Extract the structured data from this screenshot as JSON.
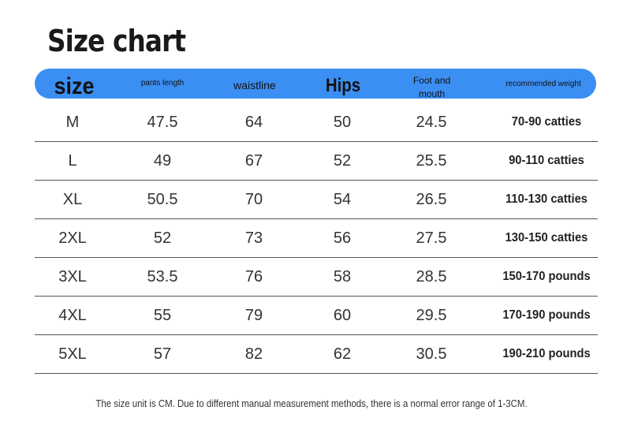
{
  "title": "Size chart",
  "header": {
    "size": "size",
    "pants_length": "pants length",
    "waistline": "waistline",
    "hips": "Hips",
    "foot_and_mouth": "Foot and mouth",
    "recommended_weight": "recommended weight",
    "bar_color": "#3b8ff2"
  },
  "rows": [
    {
      "size": "M",
      "pants_length": "47.5",
      "waistline": "64",
      "hips": "50",
      "foot_and_mouth": "24.5",
      "recommended_weight": "70-90 catties"
    },
    {
      "size": "L",
      "pants_length": "49",
      "waistline": "67",
      "hips": "52",
      "foot_and_mouth": "25.5",
      "recommended_weight": "90-110 catties"
    },
    {
      "size": "XL",
      "pants_length": "50.5",
      "waistline": "70",
      "hips": "54",
      "foot_and_mouth": "26.5",
      "recommended_weight": "110-130 catties"
    },
    {
      "size": "2XL",
      "pants_length": "52",
      "waistline": "73",
      "hips": "56",
      "foot_and_mouth": "27.5",
      "recommended_weight": "130-150 catties"
    },
    {
      "size": "3XL",
      "pants_length": "53.5",
      "waistline": "76",
      "hips": "58",
      "foot_and_mouth": "28.5",
      "recommended_weight": "150-170 pounds"
    },
    {
      "size": "4XL",
      "pants_length": "55",
      "waistline": "79",
      "hips": "60",
      "foot_and_mouth": "29.5",
      "recommended_weight": "170-190 pounds"
    },
    {
      "size": "5XL",
      "pants_length": "57",
      "waistline": "82",
      "hips": "62",
      "foot_and_mouth": "30.5",
      "recommended_weight": "190-210 pounds"
    }
  ],
  "note": "The size unit is CM. Due to different manual measurement methods, there is a normal error range of 1-3CM."
}
